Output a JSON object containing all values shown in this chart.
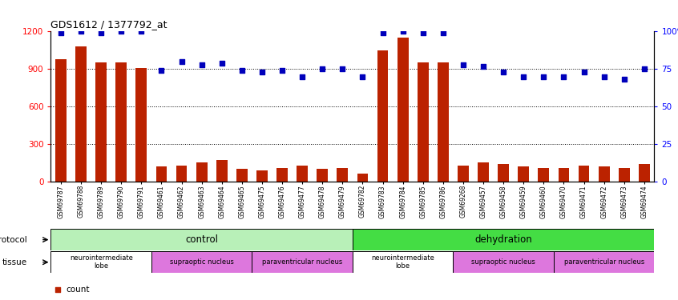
{
  "title": "GDS1612 / 1377792_at",
  "samples": [
    "GSM69787",
    "GSM69788",
    "GSM69789",
    "GSM69790",
    "GSM69791",
    "GSM69461",
    "GSM69462",
    "GSM69463",
    "GSM69464",
    "GSM69465",
    "GSM69475",
    "GSM69476",
    "GSM69477",
    "GSM69478",
    "GSM69479",
    "GSM69782",
    "GSM69783",
    "GSM69784",
    "GSM69785",
    "GSM69786",
    "GSM69268",
    "GSM69457",
    "GSM69458",
    "GSM69459",
    "GSM69460",
    "GSM69470",
    "GSM69471",
    "GSM69472",
    "GSM69473",
    "GSM69474"
  ],
  "counts": [
    980,
    1080,
    950,
    950,
    910,
    120,
    130,
    150,
    170,
    100,
    90,
    110,
    130,
    100,
    105,
    65,
    1050,
    1150,
    950,
    950,
    130,
    150,
    140,
    120,
    110,
    110,
    130,
    120,
    105,
    140
  ],
  "percentiles": [
    99,
    100,
    99,
    100,
    100,
    74,
    80,
    78,
    79,
    74,
    73,
    74,
    70,
    75,
    75,
    70,
    99,
    100,
    99,
    99,
    78,
    77,
    73,
    70,
    70,
    70,
    73,
    70,
    68,
    75
  ],
  "protocol_groups": [
    {
      "label": "control",
      "start": 0,
      "end": 15,
      "color": "#b8f0b8"
    },
    {
      "label": "dehydration",
      "start": 15,
      "end": 30,
      "color": "#44dd44"
    }
  ],
  "tissue_groups": [
    {
      "label": "neurointermediate\nlobe",
      "start": 0,
      "end": 5,
      "color": "#ffffff"
    },
    {
      "label": "supraoptic nucleus",
      "start": 5,
      "end": 10,
      "color": "#ee88ee"
    },
    {
      "label": "paraventricular nucleus",
      "start": 10,
      "end": 15,
      "color": "#ee88ee"
    },
    {
      "label": "neurointermediate\nlobe",
      "start": 15,
      "end": 20,
      "color": "#ffffff"
    },
    {
      "label": "supraoptic nucleus",
      "start": 20,
      "end": 25,
      "color": "#ee88ee"
    },
    {
      "label": "paraventricular nucleus",
      "start": 25,
      "end": 30,
      "color": "#ee88ee"
    }
  ],
  "bar_color": "#bb2200",
  "dot_color": "#0000bb",
  "ylim_left": [
    0,
    1200
  ],
  "ylim_right": [
    0,
    100
  ],
  "yticks_left": [
    0,
    300,
    600,
    900,
    1200
  ],
  "yticks_right": [
    0,
    25,
    50,
    75,
    100
  ],
  "grid_values": [
    300,
    600,
    900
  ],
  "bar_width": 0.55
}
